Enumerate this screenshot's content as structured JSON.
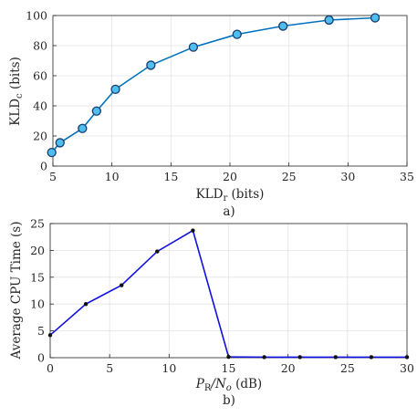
{
  "colors": {
    "top_line": "#0072bd",
    "top_marker_fill": "#4dbeee",
    "top_marker_edge": "#1a3c6e",
    "bottom_line": "#1010e0",
    "bottom_marker": "#111111"
  },
  "chart_data": [
    {
      "type": "line",
      "caption": "a)",
      "xlabel": {
        "main": "KLD",
        "sub": "r",
        "unit": " (bits)"
      },
      "ylabel": {
        "main": "KLD",
        "sub": "c",
        "unit": " (bits)"
      },
      "xlim": [
        5,
        35
      ],
      "ylim": [
        0,
        100
      ],
      "xticks": [
        5,
        10,
        15,
        20,
        25,
        30,
        35
      ],
      "yticks": [
        0,
        20,
        40,
        60,
        80,
        100
      ],
      "grid": true,
      "series": [
        {
          "x": [
            4.9,
            5.6,
            7.5,
            8.7,
            10.3,
            13.3,
            16.9,
            20.6,
            24.5,
            28.4,
            32.3
          ],
          "y": [
            9,
            15.5,
            25,
            36.5,
            51,
            67,
            79,
            87.5,
            93,
            97,
            98.5
          ]
        }
      ]
    },
    {
      "type": "line",
      "caption": "b)",
      "xlabel": {
        "main": "P",
        "sub": "R",
        "rest": "/N",
        "sub2": "o",
        "unit": " (dB)"
      },
      "ylabel": {
        "text": "Average CPU Time (s)"
      },
      "xlim": [
        0,
        30
      ],
      "ylim": [
        0,
        25
      ],
      "xticks": [
        0,
        5,
        10,
        15,
        20,
        25,
        30
      ],
      "yticks": [
        0,
        5,
        10,
        15,
        20,
        25
      ],
      "grid": true,
      "series": [
        {
          "x": [
            0,
            3,
            6,
            9,
            12,
            15,
            18,
            21,
            24,
            27,
            30
          ],
          "y": [
            4.2,
            10,
            13.5,
            19.8,
            23.7,
            0.15,
            0.1,
            0.1,
            0.1,
            0.1,
            0.1
          ]
        }
      ]
    }
  ]
}
